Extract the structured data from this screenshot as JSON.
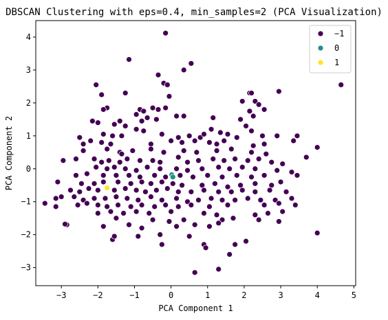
{
  "chart_data": {
    "type": "scatter",
    "title": "DBSCAN Clustering with eps=0.4, min_samples=2 (PCA Visualization)",
    "xlabel": "PCA Component 1",
    "ylabel": "PCA Component 2",
    "xlim": [
      -3.7,
      5.05
    ],
    "ylim": [
      -3.55,
      4.5
    ],
    "xticks": [
      -3,
      -2,
      -1,
      0,
      1,
      2,
      3,
      4,
      5
    ],
    "xtick_labels": [
      "−3",
      "−2",
      "−1",
      "0",
      "1",
      "2",
      "3",
      "4",
      "5"
    ],
    "yticks": [
      -3,
      -2,
      -1,
      0,
      1,
      2,
      3,
      4
    ],
    "ytick_labels": [
      "−3",
      "−2",
      "−1",
      "0",
      "1",
      "2",
      "3",
      "4"
    ],
    "grid": false,
    "legend_position": "top-right",
    "series": [
      {
        "name": "−1",
        "color": "#440154",
        "points": [
          [
            -0.15,
            4.12
          ],
          [
            -1.15,
            3.32
          ],
          [
            0.55,
            3.2
          ],
          [
            0.35,
            3.0
          ],
          [
            -0.35,
            2.85
          ],
          [
            4.65,
            2.55
          ],
          [
            -0.2,
            2.6
          ],
          [
            -0.1,
            2.55
          ],
          [
            -2.05,
            2.55
          ],
          [
            2.15,
            2.3
          ],
          [
            2.2,
            2.3
          ],
          [
            2.95,
            2.35
          ],
          [
            -1.25,
            2.3
          ],
          [
            -0.05,
            2.2
          ],
          [
            -1.9,
            2.25
          ],
          [
            1.95,
            2.05
          ],
          [
            2.3,
            2.05
          ],
          [
            2.4,
            1.95
          ],
          [
            -1.75,
            1.85
          ],
          [
            -1.85,
            1.8
          ],
          [
            -0.5,
            1.85
          ],
          [
            -0.35,
            1.8
          ],
          [
            -0.85,
            1.8
          ],
          [
            -0.75,
            1.75
          ],
          [
            -0.15,
            1.85
          ],
          [
            2.55,
            1.8
          ],
          [
            2.15,
            1.75
          ],
          [
            -0.95,
            1.65
          ],
          [
            -0.65,
            1.55
          ],
          [
            0.15,
            1.6
          ],
          [
            0.35,
            1.6
          ],
          [
            2.25,
            1.6
          ],
          [
            1.15,
            1.55
          ],
          [
            1.9,
            1.5
          ],
          [
            -2.15,
            1.45
          ],
          [
            -2.0,
            1.4
          ],
          [
            -1.4,
            1.45
          ],
          [
            -1.55,
            1.35
          ],
          [
            -0.8,
            1.45
          ],
          [
            -0.4,
            1.5
          ],
          [
            -1.25,
            1.3
          ],
          [
            -0.95,
            1.2
          ],
          [
            -0.75,
            1.15
          ],
          [
            1.1,
            1.2
          ],
          [
            1.35,
            1.1
          ],
          [
            2.05,
            1.3
          ],
          [
            2.2,
            1.15
          ],
          [
            -1.85,
            1.05
          ],
          [
            -1.6,
            1.0
          ],
          [
            -1.35,
            1.0
          ],
          [
            -0.25,
            1.05
          ],
          [
            0.2,
            0.95
          ],
          [
            0.5,
            1.0
          ],
          [
            0.8,
            0.95
          ],
          [
            0.9,
            1.05
          ],
          [
            1.55,
            1.05
          ],
          [
            1.8,
            0.95
          ],
          [
            3.45,
            1.0
          ],
          [
            2.5,
            1.0
          ],
          [
            2.9,
            1.0
          ],
          [
            -2.5,
            0.95
          ],
          [
            -2.4,
            0.75
          ],
          [
            -2.2,
            0.85
          ],
          [
            -1.9,
            0.8
          ],
          [
            -1.65,
            0.75
          ],
          [
            -0.55,
            0.75
          ],
          [
            0.0,
            0.85
          ],
          [
            0.3,
            0.8
          ],
          [
            0.65,
            0.85
          ],
          [
            1.05,
            0.8
          ],
          [
            1.25,
            0.75
          ],
          [
            1.45,
            0.85
          ],
          [
            2.25,
            0.7
          ],
          [
            2.55,
            0.75
          ],
          [
            3.35,
            0.85
          ],
          [
            -2.4,
            0.55
          ],
          [
            -1.75,
            0.6
          ],
          [
            -1.4,
            0.5
          ],
          [
            -1.35,
            0.45
          ],
          [
            -1.05,
            0.55
          ],
          [
            -0.55,
            0.6
          ],
          [
            -0.2,
            0.5
          ],
          [
            0.35,
            0.55
          ],
          [
            0.7,
            0.5
          ],
          [
            1.25,
            0.55
          ],
          [
            1.65,
            0.6
          ],
          [
            2.2,
            0.5
          ],
          [
            2.6,
            0.45
          ],
          [
            4.0,
            0.65
          ],
          [
            3.7,
            0.35
          ],
          [
            -2.95,
            0.25
          ],
          [
            -2.6,
            0.3
          ],
          [
            -2.1,
            0.3
          ],
          [
            -1.9,
            0.2
          ],
          [
            -1.7,
            0.25
          ],
          [
            -1.4,
            0.2
          ],
          [
            -1.2,
            0.3
          ],
          [
            -0.85,
            0.25
          ],
          [
            -0.5,
            0.25
          ],
          [
            -0.3,
            0.2
          ],
          [
            0.2,
            0.35
          ],
          [
            0.45,
            0.2
          ],
          [
            0.75,
            0.25
          ],
          [
            1.15,
            0.3
          ],
          [
            1.45,
            0.25
          ],
          [
            1.75,
            0.3
          ],
          [
            2.1,
            0.25
          ],
          [
            2.4,
            0.3
          ],
          [
            2.75,
            0.2
          ],
          [
            3.05,
            0.15
          ],
          [
            -2.05,
            0.05
          ],
          [
            -1.75,
            0.0
          ],
          [
            -1.55,
            0.05
          ],
          [
            -1.25,
            0.0
          ],
          [
            -0.95,
            -0.05
          ],
          [
            -0.65,
            0.05
          ],
          [
            -0.3,
            0.0
          ],
          [
            0.15,
            0.0
          ],
          [
            0.45,
            -0.05
          ],
          [
            0.85,
            0.0
          ],
          [
            1.3,
            0.05
          ],
          [
            1.6,
            0.0
          ],
          [
            1.95,
            0.05
          ],
          [
            2.3,
            0.0
          ],
          [
            2.9,
            -0.05
          ],
          [
            3.3,
            -0.1
          ],
          [
            -2.6,
            -0.2
          ],
          [
            -2.3,
            -0.15
          ],
          [
            -1.85,
            -0.2
          ],
          [
            -1.5,
            -0.2
          ],
          [
            -1.15,
            -0.2
          ],
          [
            -0.85,
            -0.25
          ],
          [
            -0.45,
            -0.2
          ],
          [
            -0.15,
            -0.25
          ],
          [
            0.25,
            -0.2
          ],
          [
            0.6,
            -0.25
          ],
          [
            1.0,
            -0.2
          ],
          [
            1.4,
            -0.25
          ],
          [
            1.8,
            -0.2
          ],
          [
            2.2,
            -0.25
          ],
          [
            2.55,
            -0.2
          ],
          [
            3.45,
            -0.2
          ],
          [
            -3.1,
            -0.4
          ],
          [
            -2.45,
            -0.45
          ],
          [
            -2.1,
            -0.45
          ],
          [
            -1.85,
            -0.4
          ],
          [
            -1.45,
            -0.4
          ],
          [
            -1.1,
            -0.45
          ],
          [
            -0.8,
            -0.4
          ],
          [
            -0.55,
            -0.45
          ],
          [
            -0.25,
            -0.4
          ],
          [
            0.05,
            -0.45
          ],
          [
            0.3,
            -0.5
          ],
          [
            0.85,
            -0.5
          ],
          [
            1.2,
            -0.45
          ],
          [
            1.55,
            -0.55
          ],
          [
            1.9,
            -0.5
          ],
          [
            2.3,
            -0.45
          ],
          [
            2.75,
            -0.5
          ],
          [
            3.0,
            -0.4
          ],
          [
            -2.75,
            -0.65
          ],
          [
            -2.5,
            -0.7
          ],
          [
            -2.25,
            -0.6
          ],
          [
            -2.0,
            -0.65
          ],
          [
            -1.55,
            -0.65
          ],
          [
            -1.25,
            -0.6
          ],
          [
            -0.95,
            -0.65
          ],
          [
            -0.7,
            -0.7
          ],
          [
            -0.4,
            -0.65
          ],
          [
            -0.1,
            -0.6
          ],
          [
            0.2,
            -0.7
          ],
          [
            0.55,
            -0.7
          ],
          [
            0.9,
            -0.65
          ],
          [
            1.3,
            -0.7
          ],
          [
            1.65,
            -0.7
          ],
          [
            1.95,
            -0.65
          ],
          [
            2.3,
            -0.7
          ],
          [
            2.7,
            -0.65
          ],
          [
            3.15,
            -0.7
          ],
          [
            -3.45,
            -1.05
          ],
          [
            -3.15,
            -0.9
          ],
          [
            -3.0,
            -0.85
          ],
          [
            -2.65,
            -0.85
          ],
          [
            -2.4,
            -0.95
          ],
          [
            -2.1,
            -0.9
          ],
          [
            -1.8,
            -0.9
          ],
          [
            -1.5,
            -0.85
          ],
          [
            -1.2,
            -0.9
          ],
          [
            -0.9,
            -0.95
          ],
          [
            -0.55,
            -0.85
          ],
          [
            -0.25,
            -0.95
          ],
          [
            0.15,
            -0.9
          ],
          [
            0.45,
            -1.0
          ],
          [
            0.75,
            -0.95
          ],
          [
            1.1,
            -0.9
          ],
          [
            1.4,
            -0.95
          ],
          [
            1.75,
            -0.95
          ],
          [
            2.1,
            -0.9
          ],
          [
            2.45,
            -0.95
          ],
          [
            2.85,
            -0.95
          ],
          [
            3.3,
            -0.9
          ],
          [
            -3.15,
            -1.15
          ],
          [
            -2.55,
            -1.1
          ],
          [
            -2.3,
            -1.05
          ],
          [
            -2.0,
            -1.1
          ],
          [
            -1.75,
            -1.15
          ],
          [
            -1.45,
            -1.1
          ],
          [
            -1.1,
            -1.15
          ],
          [
            -0.8,
            -1.1
          ],
          [
            -0.45,
            -1.15
          ],
          [
            -0.15,
            -1.1
          ],
          [
            0.2,
            -1.15
          ],
          [
            0.55,
            -1.1
          ],
          [
            1.05,
            -1.15
          ],
          [
            1.55,
            -1.1
          ],
          [
            2.55,
            -1.1
          ],
          [
            2.95,
            -1.05
          ],
          [
            3.4,
            -1.1
          ],
          [
            -2.0,
            -1.35
          ],
          [
            -1.65,
            -1.3
          ],
          [
            -1.3,
            -1.35
          ],
          [
            -0.95,
            -1.3
          ],
          [
            -0.6,
            -1.35
          ],
          [
            0.0,
            -1.3
          ],
          [
            0.9,
            -1.35
          ],
          [
            1.25,
            -1.4
          ],
          [
            2.3,
            -1.4
          ],
          [
            2.65,
            -1.35
          ],
          [
            3.05,
            -1.3
          ],
          [
            -2.85,
            -1.7
          ],
          [
            -2.9,
            -1.68
          ],
          [
            -1.5,
            -1.5
          ],
          [
            -0.5,
            -1.55
          ],
          [
            -0.05,
            -1.6
          ],
          [
            0.35,
            -1.55
          ],
          [
            1.4,
            -1.55
          ],
          [
            1.7,
            -1.5
          ],
          [
            2.4,
            -1.55
          ],
          [
            2.95,
            -1.6
          ],
          [
            -1.85,
            -1.75
          ],
          [
            -1.15,
            -1.7
          ],
          [
            -0.8,
            -1.8
          ],
          [
            0.15,
            -1.75
          ],
          [
            0.65,
            -1.7
          ],
          [
            1.05,
            -1.75
          ],
          [
            1.3,
            -1.65
          ],
          [
            -1.6,
            -2.15
          ],
          [
            -1.55,
            -2.05
          ],
          [
            -0.9,
            -2.05
          ],
          [
            -0.3,
            -2.0
          ],
          [
            0.5,
            -2.05
          ],
          [
            4.0,
            -1.95
          ],
          [
            -0.25,
            -2.3
          ],
          [
            0.9,
            -2.3
          ],
          [
            0.95,
            -2.4
          ],
          [
            1.75,
            -2.3
          ],
          [
            2.05,
            -2.2
          ],
          [
            1.6,
            -2.6
          ],
          [
            0.65,
            -3.15
          ],
          [
            1.3,
            -3.05
          ]
        ]
      },
      {
        "name": "0",
        "color": "#21918c",
        "points": [
          [
            0.02,
            -0.18
          ],
          [
            0.05,
            -0.25
          ]
        ]
      },
      {
        "name": "1",
        "color": "#fde725",
        "points": [
          [
            -1.75,
            -0.58
          ]
        ]
      }
    ]
  }
}
